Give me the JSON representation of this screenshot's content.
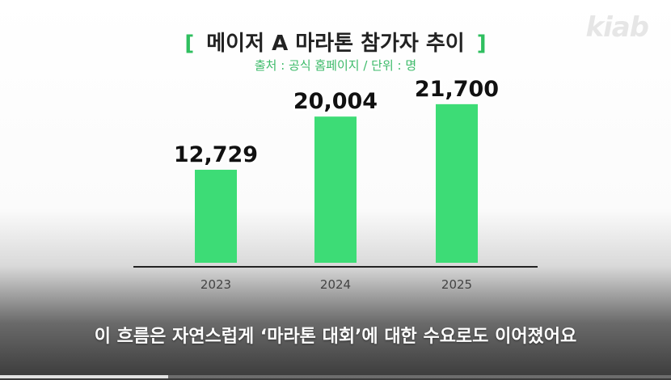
{
  "logo_text": "kiab",
  "bracket_open": "[",
  "bracket_close": "]",
  "subtitle_caption": "이 흐름은 자연스럽게 ‘마라톤 대회’에 대한 수요로도 이어졌어요",
  "video_progress": 0.25,
  "colors": {
    "bar": "#3ddc76",
    "accent": "#2fbf5f"
  },
  "chart_data": {
    "type": "bar",
    "title": "메이저 A 마라톤 참가자 추이",
    "subtitle": "출처 : 공식 홈페이지 / 단위 : 명",
    "categories": [
      "2023",
      "2024",
      "2025"
    ],
    "values": [
      12729,
      20004,
      21700
    ],
    "value_labels": [
      "12,729",
      "20,004",
      "21,700"
    ],
    "ylim": [
      0,
      26000
    ],
    "xlabel": "",
    "ylabel": "",
    "grid": false,
    "legend": "none"
  }
}
